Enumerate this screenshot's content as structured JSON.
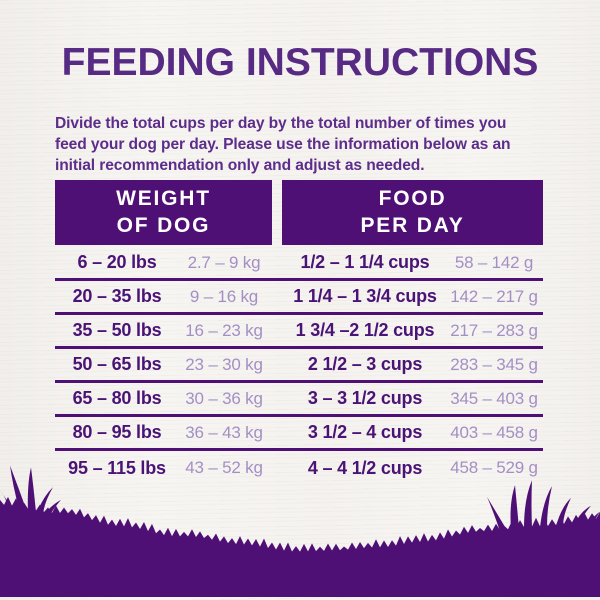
{
  "page": {
    "title": "FEEDING INSTRUCTIONS",
    "intro": "Divide the total cups per day by the total number of times you\nfeed your dog per day. Please use the information below as an\ninitial recommendation only and adjust as needed."
  },
  "colors": {
    "brand_purple": "#4f1076",
    "title_purple": "#572a83",
    "body_purple": "#5c2d8a",
    "dark_text": "#4a1376",
    "light_text": "#a48fc4",
    "header_text": "#ffffff"
  },
  "table": {
    "headers": [
      {
        "label": "WEIGHT\nOF DOG"
      },
      {
        "label": "FOOD\nPER DAY"
      }
    ],
    "rows": [
      {
        "lbs": "6 – 20 lbs",
        "kg": "2.7 – 9 kg",
        "cups": "1/2 – 1 1/4 cups",
        "grams": "58 – 142 g"
      },
      {
        "lbs": "20 – 35 lbs",
        "kg": "9 – 16 kg",
        "cups": "1 1/4 – 1 3/4 cups",
        "grams": "142 – 217 g"
      },
      {
        "lbs": "35 – 50 lbs",
        "kg": "16 – 23 kg",
        "cups": "1 3/4 –2 1/2 cups",
        "grams": "217 – 283 g"
      },
      {
        "lbs": "50 – 65 lbs",
        "kg": "23 – 30 kg",
        "cups": "2 1/2 – 3 cups",
        "grams": "283 – 345 g"
      },
      {
        "lbs": "65 – 80 lbs",
        "kg": "30 – 36 kg",
        "cups": "3 – 3 1/2 cups",
        "grams": "345 – 403 g"
      },
      {
        "lbs": "80 – 95 lbs",
        "kg": "36 – 43 kg",
        "cups": "3 1/2 – 4 cups",
        "grams": "403 – 458 g"
      },
      {
        "lbs": "95 – 115 lbs",
        "kg": "43 – 52 kg",
        "cups": "4 – 4 1/2 cups",
        "grams": "458 – 529 g"
      }
    ]
  }
}
